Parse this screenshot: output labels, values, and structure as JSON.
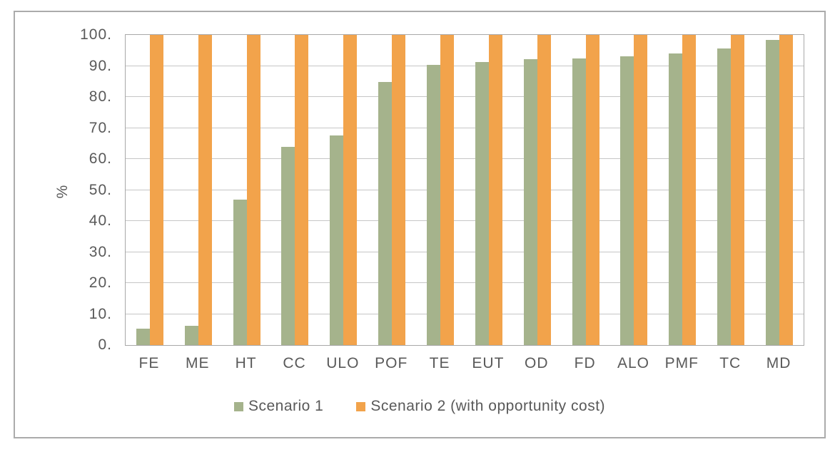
{
  "chart_data": {
    "type": "bar",
    "title": "",
    "ylabel": "%",
    "xlabel": "",
    "ylim": [
      0,
      100
    ],
    "ytick_step": 10,
    "ytick_labels": [
      "0.",
      "10.",
      "20.",
      "30.",
      "40.",
      "50.",
      "60.",
      "70.",
      "80.",
      "90.",
      "100."
    ],
    "grid": "horizontal",
    "legend_position": "bottom",
    "categories": [
      "FE",
      "ME",
      "HT",
      "CC",
      "ULO",
      "POF",
      "TE",
      "EUT",
      "OD",
      "FD",
      "ALO",
      "PMF",
      "TC",
      "MD"
    ],
    "series": [
      {
        "name": "Scenario 1",
        "color": "#a5b38c",
        "values": [
          5.3,
          6.2,
          47.0,
          63.8,
          67.5,
          84.8,
          90.4,
          91.2,
          92.2,
          92.4,
          93.0,
          94.0,
          95.7,
          98.3
        ]
      },
      {
        "name": "Scenario 2 (with opportunity cost)",
        "color": "#f2a34b",
        "values": [
          100,
          100,
          100,
          100,
          100,
          100,
          100,
          100,
          100,
          100,
          100,
          100,
          100,
          100
        ]
      }
    ]
  },
  "colors": {
    "text": "#595959",
    "gridline": "#c6c6c6",
    "plot_border": "#a8a8a8",
    "frame_border": "#ababab",
    "background": "#ffffff"
  }
}
